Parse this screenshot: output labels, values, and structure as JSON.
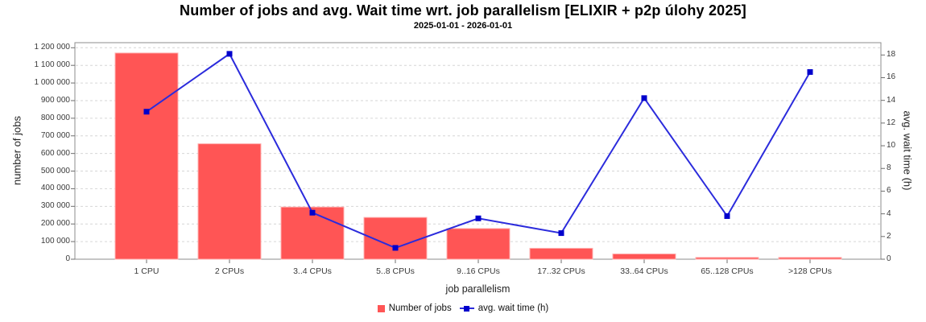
{
  "title": "Number of jobs and avg. Wait time wrt. job parallelism [ELIXIR + p2p úlohy 2025]",
  "subtitle": "2025-01-01 - 2026-01-01",
  "colors": {
    "bar": "#ff5555",
    "bar_outline": "#ffb0b0",
    "line": "#2b2bdc",
    "marker": "#0000cc",
    "grid": "#d6d6d6",
    "plot_border": "#8c8c8c",
    "tick": "#6e6e6e",
    "tick_text": "#3a3a3a"
  },
  "chart_data": {
    "type": "bar",
    "subtype": "bar+line dual axis",
    "title": "Number of jobs and avg. Wait time wrt. job parallelism [ELIXIR + p2p úlohy 2025]",
    "subtitle": "2025-01-01 - 2026-01-01",
    "categories": [
      "1 CPU",
      "2 CPUs",
      "3..4 CPUs",
      "5..8 CPUs",
      "9..16 CPUs",
      "17..32 CPUs",
      "33..64 CPUs",
      "65..128 CPUs",
      ">128 CPUs"
    ],
    "series": [
      {
        "name": "Number of jobs",
        "type": "bar",
        "axis": "left",
        "color": "#ff5555",
        "values": [
          1170000,
          655000,
          296000,
          237000,
          174000,
          62000,
          30000,
          10000,
          10000
        ]
      },
      {
        "name": "avg. wait time (h)",
        "type": "line",
        "axis": "right",
        "color": "#2b2bdc",
        "marker": "square",
        "marker_color": "#0000cc",
        "values": [
          13.0,
          18.1,
          4.1,
          1.0,
          3.6,
          2.3,
          14.2,
          3.8,
          16.5
        ]
      }
    ],
    "x_axis": {
      "label": "job parallelism"
    },
    "left_axis": {
      "label": "number of jobs",
      "min": 0,
      "max": 1200000,
      "tick_step": 100000,
      "tick_labels": [
        "0",
        "100 000",
        "200 000",
        "300 000",
        "400 000",
        "500 000",
        "600 000",
        "700 000",
        "800 000",
        "900 000",
        "1 000 000",
        "1 100 000",
        "1 200 000"
      ]
    },
    "right_axis": {
      "label": "avg. wait time (h)",
      "min": 0,
      "max": 18,
      "tick_step": 2,
      "tick_labels": [
        "0",
        "2",
        "4",
        "6",
        "8",
        "10",
        "12",
        "14",
        "16",
        "18"
      ]
    },
    "grid": "horizontal dashed at left-axis ticks",
    "legend_position": "bottom-center"
  }
}
